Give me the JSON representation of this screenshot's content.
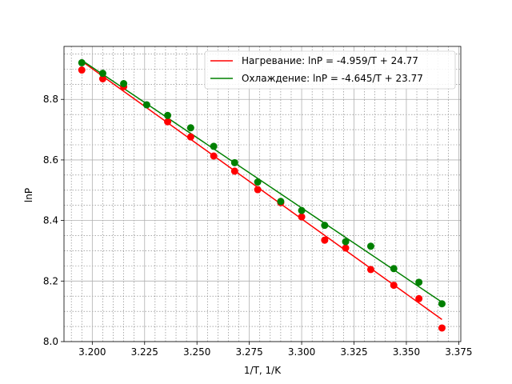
{
  "chart_data": {
    "type": "scatter",
    "title": "",
    "xlabel": "1/T, 1/K",
    "ylabel": "lnP",
    "xlim": [
      3.1865,
      3.376
    ],
    "ylim": [
      8.0,
      8.975
    ],
    "x_ticks": [
      3.2,
      3.225,
      3.25,
      3.275,
      3.3,
      3.325,
      3.35,
      3.375
    ],
    "x_tick_labels": [
      "3.200",
      "3.225",
      "3.250",
      "3.275",
      "3.300",
      "3.325",
      "3.350",
      "3.375"
    ],
    "y_ticks": [
      8.0,
      8.2,
      8.4,
      8.6,
      8.8
    ],
    "y_tick_labels": [
      "8.0",
      "8.2",
      "8.4",
      "8.6",
      "8.8"
    ],
    "grid": true,
    "grid_minor": true,
    "legend_position": "top-right",
    "series": [
      {
        "name": "Нагревание: lnP = -4.959/T + 24.77",
        "color": "#ff0000",
        "x": [
          3.195,
          3.205,
          3.215,
          3.236,
          3.247,
          3.258,
          3.268,
          3.279,
          3.29,
          3.3,
          3.311,
          3.321,
          3.333,
          3.344,
          3.356,
          3.367
        ],
        "y": [
          8.897,
          8.868,
          8.842,
          8.726,
          8.676,
          8.613,
          8.563,
          8.502,
          8.459,
          8.412,
          8.335,
          8.309,
          8.238,
          8.186,
          8.142,
          8.045
        ],
        "fit": {
          "slope": -4.959,
          "intercept": 24.77,
          "x_range": [
            3.195,
            3.367
          ]
        }
      },
      {
        "name": "Охлаждение: lnP = -4.645/T + 23.77",
        "color": "#008000",
        "x": [
          3.195,
          3.205,
          3.215,
          3.226,
          3.236,
          3.247,
          3.258,
          3.268,
          3.279,
          3.29,
          3.3,
          3.311,
          3.321,
          3.333,
          3.344,
          3.356,
          3.367
        ],
        "y": [
          8.921,
          8.886,
          8.852,
          8.782,
          8.747,
          8.706,
          8.645,
          8.591,
          8.527,
          8.463,
          8.433,
          8.384,
          8.33,
          8.315,
          8.241,
          8.196,
          8.125
        ],
        "fit": {
          "slope": -4.645,
          "intercept": 23.77,
          "x_range": [
            3.195,
            3.367
          ]
        }
      }
    ]
  }
}
